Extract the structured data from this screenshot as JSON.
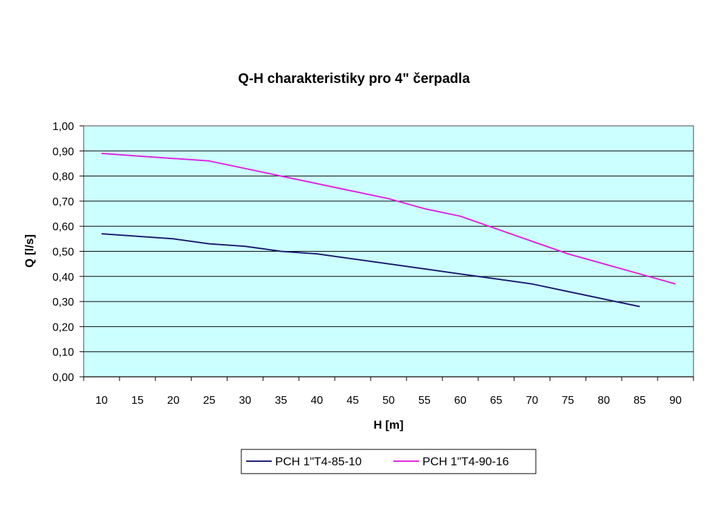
{
  "chart_data": {
    "type": "line",
    "title": "Q-H charakteristiky pro 4\" čerpadla",
    "xlabel": "H [m]",
    "ylabel": "Q [l/s]",
    "categories": [
      "10",
      "15",
      "20",
      "25",
      "30",
      "35",
      "40",
      "45",
      "50",
      "55",
      "60",
      "65",
      "70",
      "75",
      "80",
      "85",
      "90"
    ],
    "x": [
      10,
      15,
      20,
      25,
      30,
      35,
      40,
      45,
      50,
      55,
      60,
      65,
      70,
      75,
      80,
      85,
      90
    ],
    "ylim": [
      0,
      1
    ],
    "ystep": 0.1,
    "yticks": [
      "0,00",
      "0,10",
      "0,20",
      "0,30",
      "0,40",
      "0,50",
      "0,60",
      "0,70",
      "0,80",
      "0,90",
      "1,00"
    ],
    "grid": true,
    "legend_position": "bottom",
    "plot_background": "#ccffff",
    "series": [
      {
        "name": "PCH 1\"T4-85-10",
        "color": "#1a1a6e",
        "values": [
          0.57,
          0.56,
          0.55,
          0.53,
          0.52,
          0.5,
          0.49,
          0.47,
          0.45,
          0.43,
          0.41,
          0.39,
          0.37,
          0.34,
          0.31,
          0.28,
          null
        ]
      },
      {
        "name": "PCH 1\"T4-90-16",
        "color": "#e020e0",
        "values": [
          0.89,
          0.88,
          0.87,
          0.86,
          0.83,
          0.8,
          0.77,
          0.74,
          0.71,
          0.67,
          0.64,
          0.59,
          0.54,
          0.49,
          0.45,
          0.41,
          0.37
        ]
      }
    ]
  }
}
